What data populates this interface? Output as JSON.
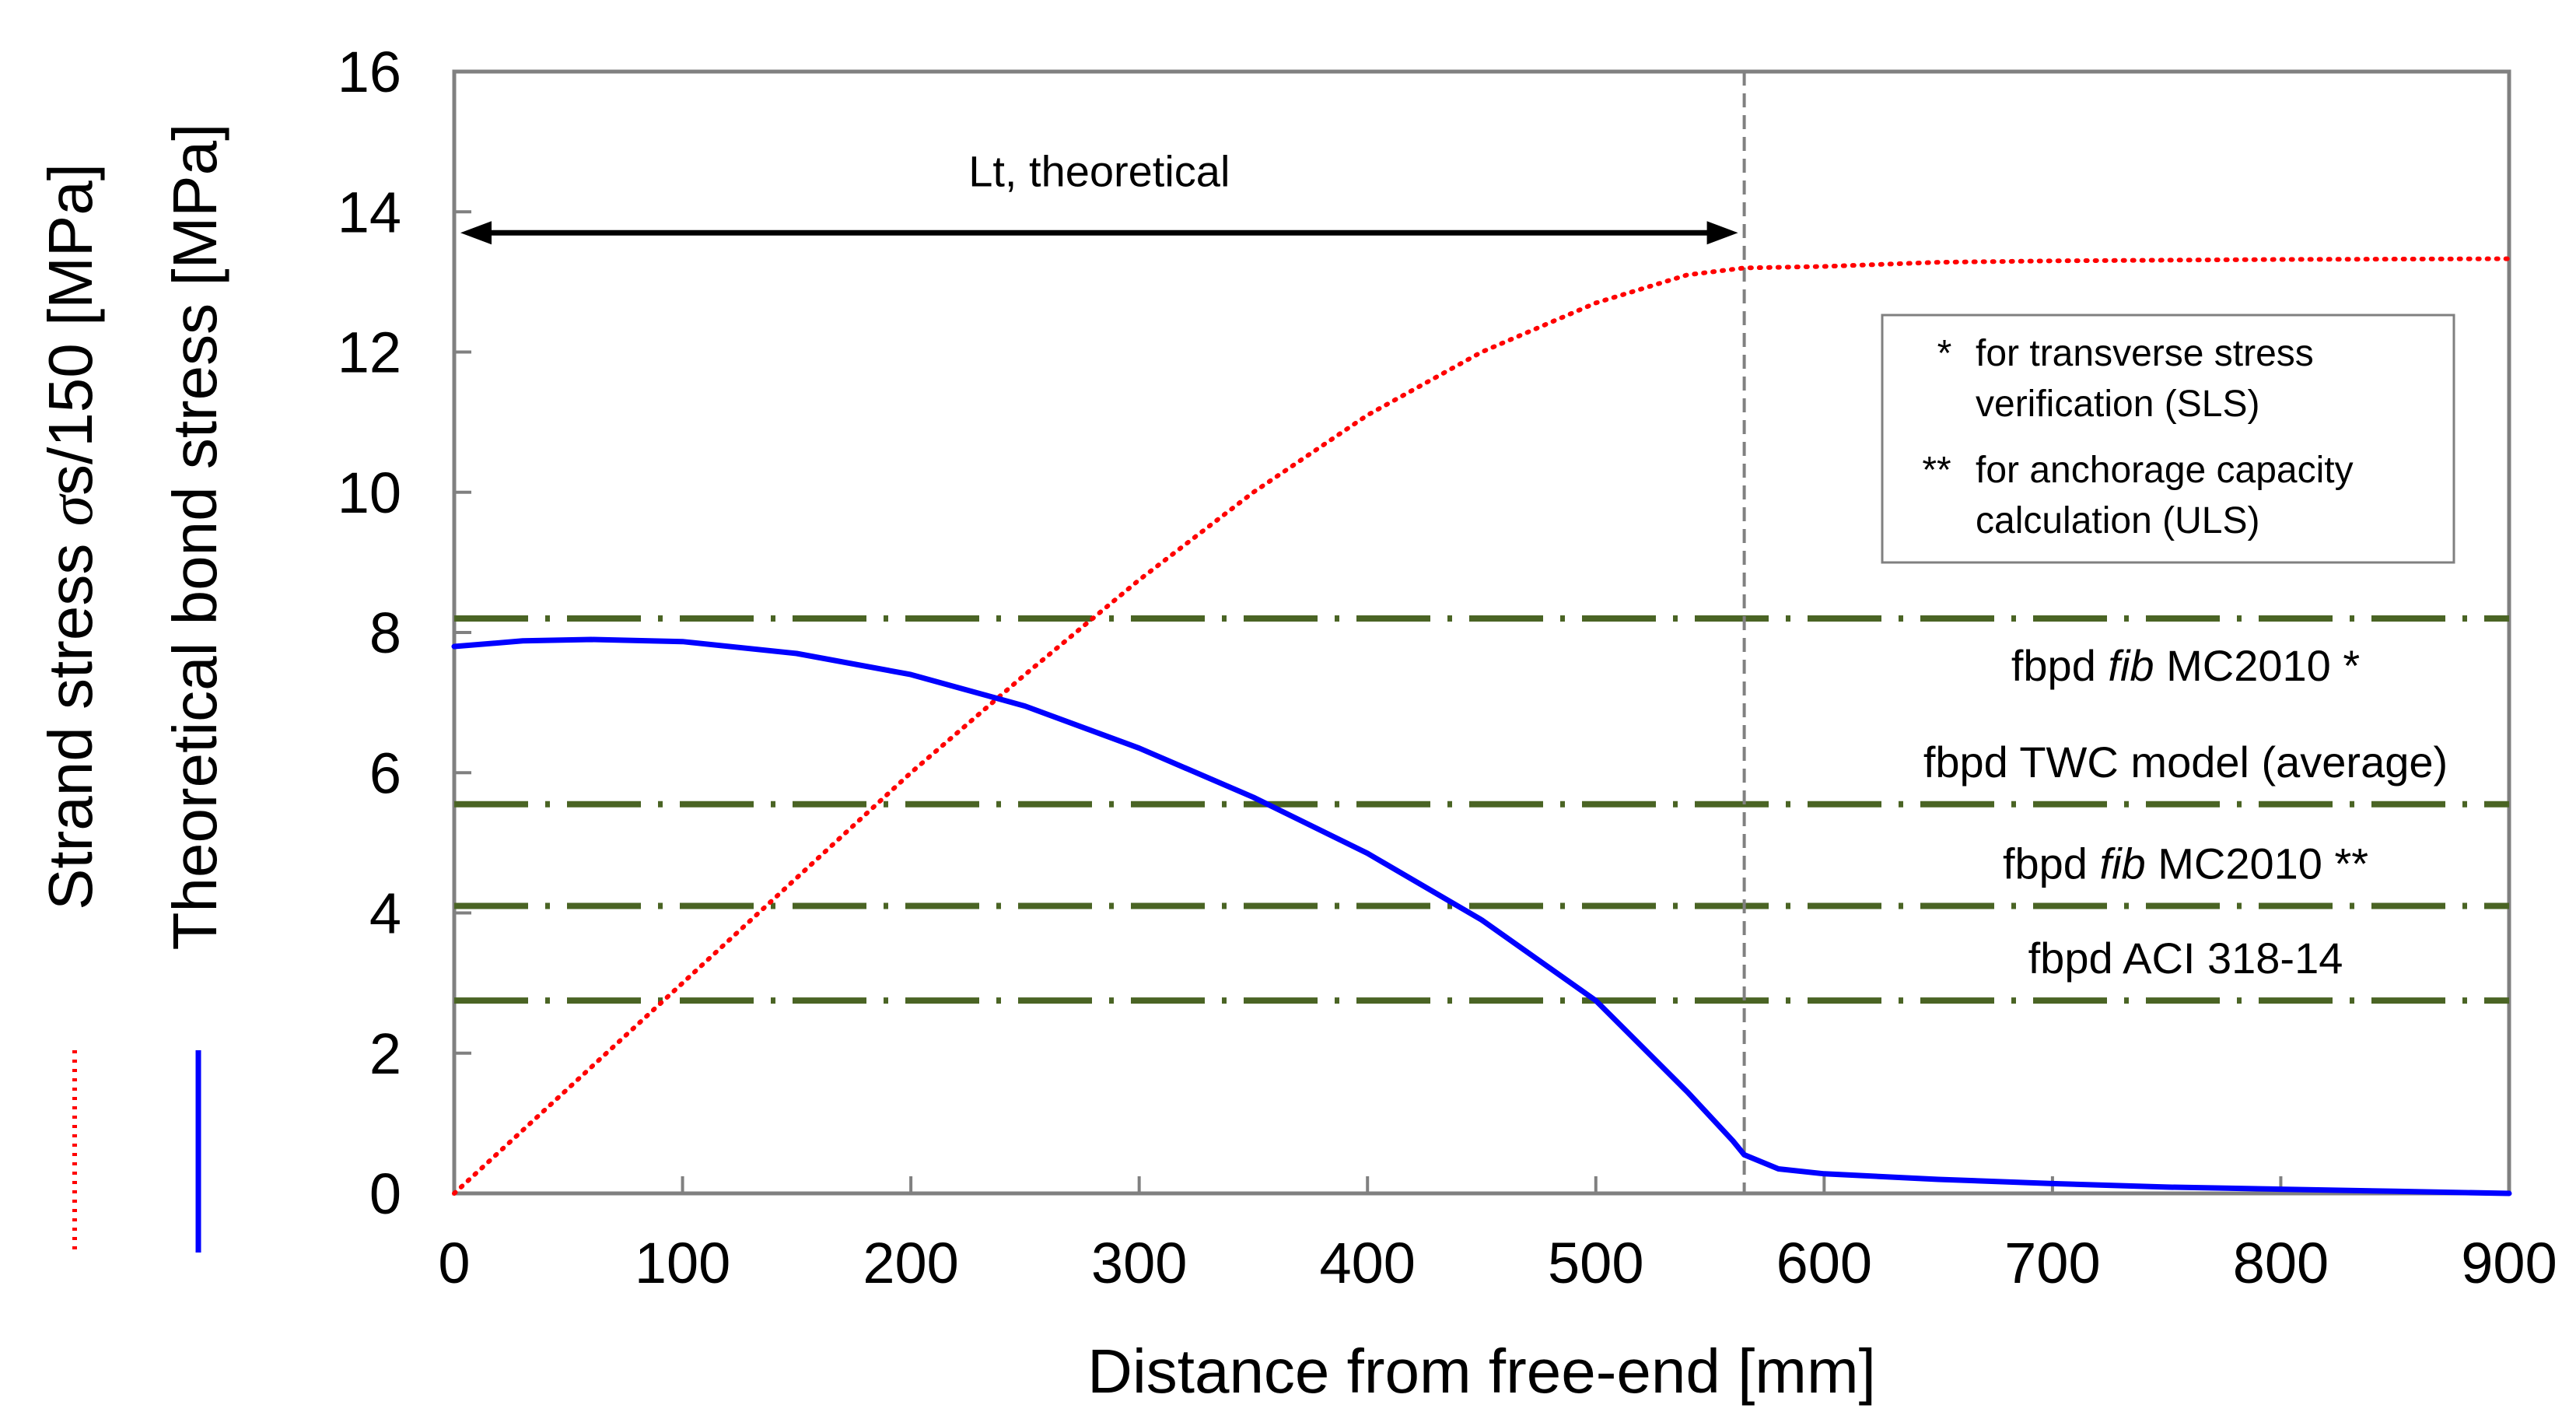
{
  "chart_data": {
    "type": "line",
    "xlabel": "Distance from free-end  [mm]",
    "ylabel_outer": "Strand stress σs/150 [MPa]",
    "ylabel_outer_prefix": "Strand stress ",
    "ylabel_outer_sigma": "σ",
    "ylabel_outer_suffix": "s/150 [MPa]",
    "ylabel_inner": "Theoretical bond stress  [MPa]",
    "xlim": [
      0,
      900
    ],
    "ylim": [
      0,
      16
    ],
    "x_ticks": [
      0,
      100,
      200,
      300,
      400,
      500,
      600,
      700,
      800,
      900
    ],
    "y_ticks": [
      0,
      2,
      4,
      6,
      8,
      10,
      12,
      14,
      16
    ],
    "grid": false,
    "series": [
      {
        "name": "Strand stress σs/150",
        "color": "#ff0000",
        "style": "dotted",
        "x": [
          0,
          50,
          100,
          150,
          200,
          250,
          300,
          350,
          400,
          450,
          500,
          540,
          565,
          600,
          650,
          700,
          800,
          900
        ],
        "y": [
          0,
          1.5,
          3.0,
          4.5,
          6.0,
          7.4,
          8.75,
          10.0,
          11.1,
          12.0,
          12.7,
          13.1,
          13.2,
          13.22,
          13.28,
          13.3,
          13.32,
          13.33
        ]
      },
      {
        "name": "Theoretical bond stress",
        "color": "#0000ff",
        "style": "solid",
        "x": [
          0,
          30,
          60,
          100,
          150,
          200,
          250,
          300,
          350,
          400,
          450,
          500,
          540,
          560,
          565,
          580,
          600,
          650,
          700,
          750,
          800,
          850,
          900
        ],
        "y": [
          7.8,
          7.88,
          7.9,
          7.87,
          7.7,
          7.4,
          6.95,
          6.35,
          5.65,
          4.85,
          3.9,
          2.75,
          1.45,
          0.75,
          0.55,
          0.35,
          0.28,
          0.2,
          0.14,
          0.09,
          0.06,
          0.03,
          0.0
        ]
      }
    ],
    "reference_lines": [
      {
        "y": 8.2,
        "label_prefix": "fbpd  ",
        "label_italic": "fib",
        "label_suffix": " MC2010 *",
        "color": "#4a6424"
      },
      {
        "y": 5.55,
        "label_prefix": "fbpd  TWC model (average)",
        "label_italic": "",
        "label_suffix": "",
        "color": "#4a6424"
      },
      {
        "y": 4.1,
        "label_prefix": "fbpd  ",
        "label_italic": "fib",
        "label_suffix": " MC2010 **",
        "color": "#4a6424"
      },
      {
        "y": 2.75,
        "label_prefix": "fbpd  ACI 318-14",
        "label_italic": "",
        "label_suffix": "",
        "color": "#4a6424"
      }
    ],
    "vertical_line": {
      "x": 565,
      "color": "#808080"
    },
    "span_annotation": {
      "label": "Lt, theoretical",
      "x_start": 0,
      "x_end": 565,
      "y": 13.7
    },
    "legend_box": {
      "rows": [
        {
          "marker": "*",
          "line1": "for transverse stress",
          "line2": "verification (SLS)"
        },
        {
          "marker": "**",
          "line1": "for anchorage capacity",
          "line2": "calculation (ULS)"
        }
      ]
    }
  }
}
